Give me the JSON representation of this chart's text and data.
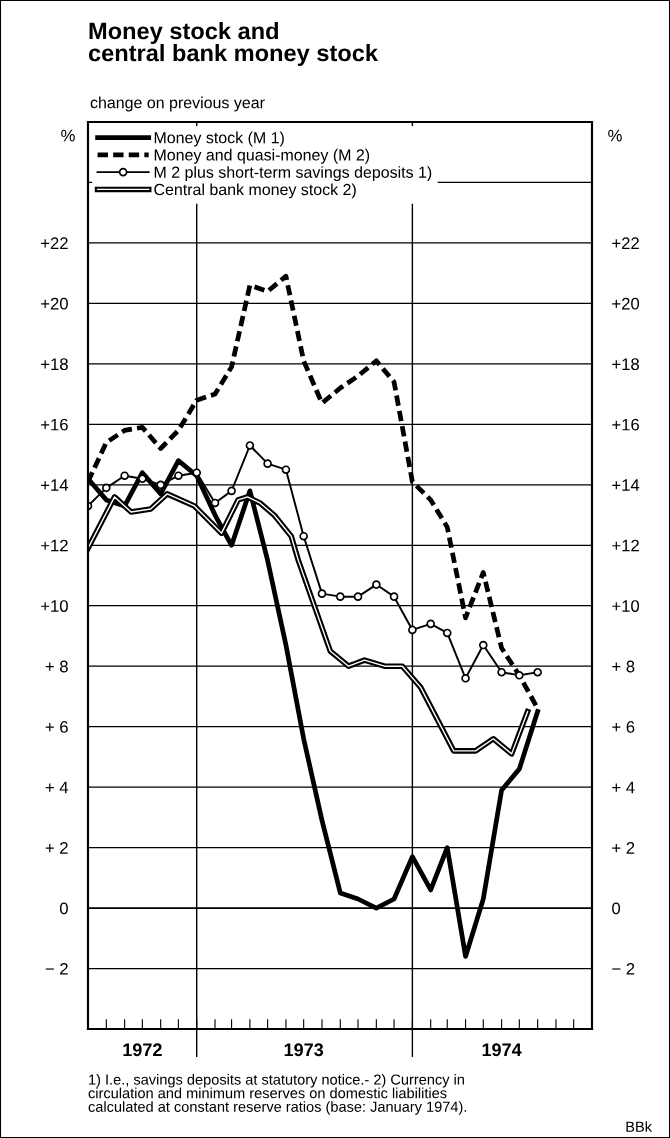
{
  "chart_data": {
    "type": "line",
    "title": "Money stock and\ncentral bank money stock",
    "subtitle": "change on previous year",
    "ylabel": "%",
    "y2label": "%",
    "xlim": [
      "1972-07",
      "1974-11"
    ],
    "xticks": [
      {
        "value": "1972-07",
        "label": null
      },
      {
        "value": "1972-08",
        "label": null
      },
      {
        "value": "1972-09",
        "label": null
      },
      {
        "value": "1972-10",
        "label": "1972"
      },
      {
        "value": "1972-11",
        "label": null
      },
      {
        "value": "1972-12",
        "label": null
      },
      {
        "value": "1973-01",
        "label": null
      },
      {
        "value": "1973-02",
        "label": null
      },
      {
        "value": "1973-03",
        "label": null
      },
      {
        "value": "1973-04",
        "label": null
      },
      {
        "value": "1973-05",
        "label": null
      },
      {
        "value": "1973-06",
        "label": null
      },
      {
        "value": "1973-07",
        "label": "1973"
      },
      {
        "value": "1973-08",
        "label": null
      },
      {
        "value": "1973-09",
        "label": null
      },
      {
        "value": "1973-10",
        "label": null
      },
      {
        "value": "1973-11",
        "label": null
      },
      {
        "value": "1973-12",
        "label": null
      },
      {
        "value": "1974-01",
        "label": null
      },
      {
        "value": "1974-02",
        "label": null
      },
      {
        "value": "1974-03",
        "label": null
      },
      {
        "value": "1974-04",
        "label": null
      },
      {
        "value": "1974-05",
        "label": null
      },
      {
        "value": "1974-06",
        "label": "1974"
      },
      {
        "value": "1974-07",
        "label": null
      },
      {
        "value": "1974-08",
        "label": null
      },
      {
        "value": "1974-09",
        "label": null
      },
      {
        "value": "1974-10",
        "label": null
      },
      {
        "value": "1974-11",
        "label": null
      }
    ],
    "ylim": [
      -4,
      26
    ],
    "yticks": [
      {
        "value": -2,
        "label": "− 2"
      },
      {
        "value": 0,
        "label": "0"
      },
      {
        "value": 2,
        "label": "+ 2"
      },
      {
        "value": 4,
        "label": "+ 4"
      },
      {
        "value": 6,
        "label": "+ 6"
      },
      {
        "value": 8,
        "label": "+ 8"
      },
      {
        "value": 10,
        "label": "+10"
      },
      {
        "value": 12,
        "label": "+12"
      },
      {
        "value": 14,
        "label": "+14"
      },
      {
        "value": 16,
        "label": "+16"
      },
      {
        "value": 18,
        "label": "+18"
      },
      {
        "value": 20,
        "label": "+20"
      },
      {
        "value": 22,
        "label": "+22"
      },
      {
        "value": 24,
        "label": null
      }
    ],
    "y2lim": [
      -4,
      26
    ],
    "y2ticks": [
      {
        "value": -2,
        "label": "− 2"
      },
      {
        "value": 0,
        "label": "0"
      },
      {
        "value": 2,
        "label": "+ 2"
      },
      {
        "value": 4,
        "label": "+ 4"
      },
      {
        "value": 6,
        "label": "+ 6"
      },
      {
        "value": 8,
        "label": "+ 8"
      },
      {
        "value": 10,
        "label": "+10"
      },
      {
        "value": 12,
        "label": "+12"
      },
      {
        "value": 14,
        "label": "+14"
      },
      {
        "value": 16,
        "label": "+16"
      },
      {
        "value": 18,
        "label": "+18"
      },
      {
        "value": 20,
        "label": "+20"
      },
      {
        "value": 22,
        "label": "+22"
      },
      {
        "value": 24,
        "label": null
      }
    ],
    "grid": "y",
    "legend": "top left",
    "ref_lines": [
      {
        "axis": "x",
        "value": "1973-01",
        "label": null
      },
      {
        "axis": "x",
        "value": "1974-01",
        "label": null
      }
    ],
    "series": [
      {
        "name": "Money stock (M 1)",
        "color": "#000000",
        "line_style": "solid",
        "x": [
          "1972-07",
          "1972-08",
          "1972-09",
          "1972-10",
          "1972-11",
          "1972-12",
          "1973-01",
          "1973-02",
          "1973-03",
          "1973-04",
          "1973-05",
          "1973-06",
          "1973-07",
          "1973-08",
          "1973-09",
          "1973-10",
          "1973-11",
          "1973-12",
          "1974-01",
          "1974-02",
          "1974-03",
          "1974-04",
          "1974-05",
          "1974-06",
          "1974-07",
          "1974-08"
        ],
        "values": [
          14.2,
          13.5,
          13.3,
          14.4,
          13.7,
          14.8,
          14.3,
          13.0,
          12.0,
          13.8,
          11.5,
          8.7,
          5.6,
          2.9,
          0.5,
          0.3,
          0.0,
          0.3,
          1.7,
          0.6,
          2.0,
          -1.6,
          0.3,
          3.9,
          4.6,
          6.5
        ]
      },
      {
        "name": "Money and quasi-money (M 2)",
        "color": "#000000",
        "line_style": "dashed",
        "x": [
          "1972-07",
          "1972-08",
          "1972-09",
          "1972-10",
          "1972-11",
          "1972-12",
          "1973-01",
          "1973-02",
          "1973-03",
          "1973-04",
          "1973-05",
          "1973-06",
          "1973-07",
          "1973-08",
          "1973-09",
          "1973-10",
          "1973-11",
          "1973-12",
          "1974-01",
          "1974-02",
          "1974-03",
          "1974-04",
          "1974-05",
          "1974-06",
          "1974-07",
          "1974-08"
        ],
        "values": [
          14.1,
          15.4,
          15.8,
          15.9,
          15.2,
          15.8,
          16.8,
          17.0,
          17.9,
          20.6,
          20.4,
          20.9,
          18.1,
          16.7,
          17.2,
          17.6,
          18.1,
          17.4,
          14.1,
          13.5,
          12.6,
          9.6,
          11.1,
          8.6,
          7.7,
          6.6
        ]
      },
      {
        "name": "M 2 plus short-term savings deposits 1)",
        "color": "#000000",
        "line_style": "solid",
        "marker": "circle",
        "x": [
          "1972-07",
          "1972-08",
          "1972-09",
          "1972-10",
          "1972-11",
          "1972-12",
          "1973-01",
          "1973-02",
          "1973-03",
          "1973-04",
          "1973-05",
          "1973-06",
          "1973-07",
          "1973-08",
          "1973-09",
          "1973-10",
          "1973-11",
          "1973-12",
          "1974-01",
          "1974-02",
          "1974-03",
          "1974-04",
          "1974-05",
          "1974-06",
          "1974-07",
          "1974-08"
        ],
        "values": [
          13.3,
          13.9,
          14.3,
          14.2,
          14.0,
          14.3,
          14.4,
          13.4,
          13.8,
          15.3,
          14.7,
          14.5,
          12.3,
          10.4,
          10.3,
          10.3,
          10.7,
          10.3,
          9.2,
          9.4,
          9.1,
          7.6,
          8.7,
          7.8,
          7.7,
          7.8
        ]
      },
      {
        "name": "Central bank money stock 2)",
        "color": "#000000",
        "line_style": "solid",
        "x": [
          "1972-07",
          "1972-08-15",
          "1972-09-12",
          "1972-10-15",
          "1972-11-12",
          "1972-12-28",
          "1973-02-12",
          "1973-03-12",
          "1973-03-28",
          "1973-04-18",
          "1973-05-12",
          "1973-06-10",
          "1973-06-22",
          "1973-08-15",
          "1973-09-15",
          "1973-10-12",
          "1973-11-15",
          "1973-12-15",
          "1974-01-15",
          "1974-03-12",
          "1974-04-18",
          "1974-05-18",
          "1974-06-18",
          "1974-07-15"
        ],
        "values": [
          11.9,
          13.6,
          13.1,
          13.2,
          13.7,
          13.3,
          12.4,
          13.5,
          13.6,
          13.4,
          13.0,
          12.3,
          11.5,
          8.5,
          8.0,
          8.2,
          8.0,
          8.0,
          7.3,
          5.2,
          5.2,
          5.6,
          5.1,
          6.5
        ]
      }
    ],
    "annotations": [
      "1) I.e., savings deposits at statutory notice.- 2) Currency in\ncirculation and minimum reserves on domestic liabilities\ncalculated at constant reserve ratios (base: January 1974).",
      "BBk"
    ]
  }
}
